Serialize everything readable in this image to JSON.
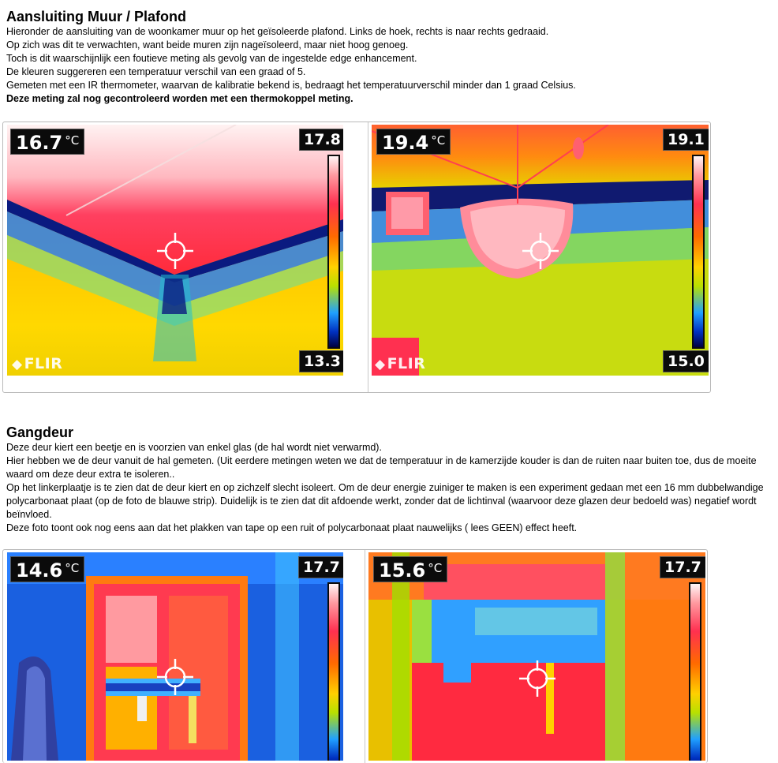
{
  "section1": {
    "title": "Aansluiting Muur / Plafond",
    "lines": [
      "Hieronder de aansluiting  van de woonkamer muur op het geïsoleerde plafond. Links de hoek, rechts is  naar  rechts  gedraaid.",
      "Op zich  was  dit te verwachten, want beide muren zijn nageïsoleerd, maar niet hoog genoeg.",
      "Toch is  dit  waarschijnlijk   een foutieve meting als gevolg van de ingestelde edge enhancement.",
      "De kleuren suggereren een temperatuur verschil  van  een graad of 5.",
      "Gemeten met een IR thermometer, waarvan de kalibratie  bekend is, bedraagt het temperatuurverschil minder dan 1  graad  Celsius."
    ],
    "bold_line": "Deze meting zal nog gecontroleerd worden met een thermokoppel meting.",
    "images": [
      {
        "temp": "16.7",
        "unit": "°C",
        "scale_max": "17.8",
        "scale_min": "13.3",
        "brand": "FLIR"
      },
      {
        "temp": "19.4",
        "unit": "°C",
        "scale_max": "19.1",
        "scale_min": "15.0",
        "brand": "FLIR"
      }
    ]
  },
  "section2": {
    "title": "Gangdeur",
    "lines": [
      "Deze deur kiert een beetje en is voorzien van enkel glas  (de hal wordt niet verwarmd).",
      "Hier hebben we de deur vanuit de hal gemeten. (Uit eerdere metingen weten we dat de temperatuur in de kamerzijde kouder is  dan de ruiten naar  buiten toe, dus de moeite waard om deze deur extra te isoleren..",
      "Op het linkerplaatje  is  te zien dat de deur kiert en op zichzelf slecht isoleert. Om de deur energie zuiniger te maken is  een experiment gedaan met een 16 mm dubbelwandige polycarbonaat  plaat  (op de foto de blauwe strip).  Duidelijk  is  te zien dat dit afdoende werkt, zonder dat de lichtinval  (waarvoor  deze glazen deur bedoeld was)  negatief wordt beïnvloed.",
      "Deze foto toont ook nog eens aan dat het plakken van tape op een ruit of polycarbonaat  plaat  nauwelijks  ( lees GEEN) effect heeft."
    ],
    "images": [
      {
        "temp": "14.6",
        "unit": "°C",
        "scale_max": "17.7"
      },
      {
        "temp": "15.6",
        "unit": "°C",
        "scale_max": "17.7"
      }
    ]
  },
  "colors": {
    "frame_border": "#b9b9b9",
    "overlay_bg": "#0b0b0b",
    "overlay_text": "#ffffff"
  },
  "icons": [
    "crosshair-icon",
    "flir-logo-icon"
  ]
}
